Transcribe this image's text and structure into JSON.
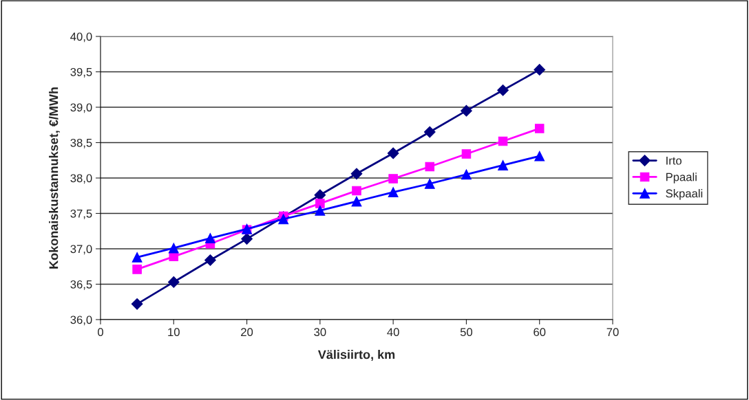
{
  "chart_data": {
    "type": "line",
    "xlabel": "Välisiirto, km",
    "ylabel": "Kokonaiskustannukset, €/MWh",
    "x": [
      5,
      10,
      15,
      20,
      25,
      30,
      35,
      40,
      45,
      50,
      55,
      60
    ],
    "series": [
      {
        "name": "Irto",
        "color": "#000080",
        "marker": "diamond",
        "values": [
          36.22,
          36.53,
          36.84,
          37.14,
          37.45,
          37.76,
          38.06,
          38.35,
          38.65,
          38.95,
          39.24,
          39.53
        ]
      },
      {
        "name": "Ppaali",
        "color": "#ff00ff",
        "marker": "square",
        "values": [
          36.71,
          36.89,
          37.07,
          37.27,
          37.46,
          37.64,
          37.82,
          37.99,
          38.16,
          38.34,
          38.52,
          38.7
        ]
      },
      {
        "name": "Skpaali",
        "color": "#0000ff",
        "marker": "triangle",
        "values": [
          36.88,
          37.01,
          37.15,
          37.28,
          37.42,
          37.54,
          37.67,
          37.8,
          37.92,
          38.05,
          38.18,
          38.31
        ]
      }
    ],
    "xlim": [
      0,
      70
    ],
    "xticks": [
      0,
      10,
      20,
      30,
      40,
      50,
      60,
      70
    ],
    "ylim": [
      36.0,
      40.0
    ],
    "yticks": [
      {
        "value": 36.0,
        "label": "36,0"
      },
      {
        "value": 36.5,
        "label": "36,5"
      },
      {
        "value": 37.0,
        "label": "37,0"
      },
      {
        "value": 37.5,
        "label": "37,5"
      },
      {
        "value": 38.0,
        "label": "38,0"
      },
      {
        "value": 38.5,
        "label": "38,5"
      },
      {
        "value": 39.0,
        "label": "39,0"
      },
      {
        "value": 39.5,
        "label": "39,5"
      },
      {
        "value": 40.0,
        "label": "40,0"
      }
    ],
    "grid": "y",
    "legend": "right",
    "line_style": "solid"
  }
}
